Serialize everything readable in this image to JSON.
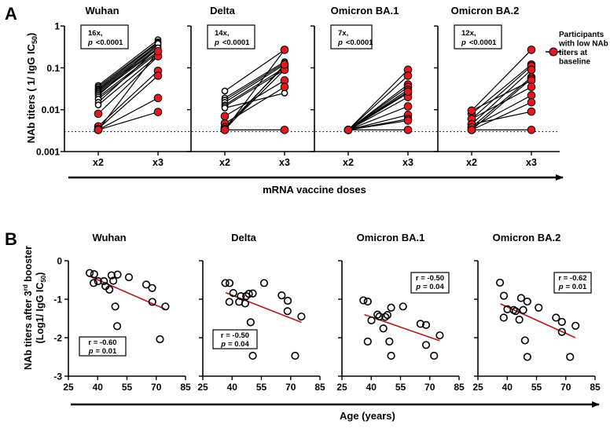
{
  "panel_labels": [
    "A",
    "B"
  ],
  "colors": {
    "low": "#e3191f",
    "open": "#ffffff",
    "trend": "#b3191c",
    "ink": "#000000"
  },
  "legend": {
    "lines": [
      "Participants",
      "with low NAb",
      "titers at",
      "baseline"
    ]
  },
  "chart_data": [
    {
      "type": "line",
      "panel": "A",
      "ylabel": {
        "main": "NAb titers ( 1/ IgG  IC",
        "sub": "50",
        "end": ")"
      },
      "xlabel": "mRNA vaccine doses",
      "yscale": "log",
      "ylim": [
        0.001,
        1
      ],
      "yticks": [
        {
          "v": 1,
          "label": "1"
        },
        {
          "v": 0.1,
          "label": "0.1"
        },
        {
          "v": 0.01,
          "label": "0.01"
        },
        {
          "v": 0.001,
          "label": "0.001"
        }
      ],
      "categories": [
        "x2",
        "x3"
      ],
      "detection_limit": 0.003,
      "subplots": [
        {
          "title": "Wuhan",
          "fold": "16x,",
          "p_label": "p",
          "p_value": "<0.0001",
          "pairs": [
            [
              0.038,
              0.47,
              false
            ],
            [
              0.035,
              0.42,
              false
            ],
            [
              0.032,
              0.4,
              false
            ],
            [
              0.03,
              0.36,
              false
            ],
            [
              0.028,
              0.33,
              false
            ],
            [
              0.026,
              0.3,
              false
            ],
            [
              0.024,
              0.28,
              false
            ],
            [
              0.022,
              0.38,
              false
            ],
            [
              0.02,
              0.25,
              false
            ],
            [
              0.018,
              0.23,
              false
            ],
            [
              0.015,
              0.3,
              false
            ],
            [
              0.013,
              0.2,
              false
            ],
            [
              0.008,
              0.19,
              true
            ],
            [
              0.004,
              0.085,
              true
            ],
            [
              0.0035,
              0.065,
              true
            ],
            [
              0.0033,
              0.019,
              true
            ],
            [
              0.0033,
              0.0088,
              true
            ],
            [
              0.0033,
              0.25,
              true
            ]
          ]
        },
        {
          "title": "Delta",
          "fold": "14x,",
          "p_label": "p",
          "p_value": "<0.0001",
          "pairs": [
            [
              0.028,
              0.27,
              false
            ],
            [
              0.019,
              0.14,
              false
            ],
            [
              0.017,
              0.13,
              false
            ],
            [
              0.015,
              0.12,
              false
            ],
            [
              0.013,
              0.1,
              false
            ],
            [
              0.012,
              0.09,
              false
            ],
            [
              0.011,
              0.025,
              false
            ],
            [
              0.007,
              0.05,
              true
            ],
            [
              0.0047,
              0.035,
              true
            ],
            [
              0.0038,
              0.11,
              true
            ],
            [
              0.0035,
              0.09,
              true
            ],
            [
              0.0033,
              0.0033,
              true
            ],
            [
              0.0033,
              0.27,
              true
            ],
            [
              0.0033,
              0.12,
              true
            ]
          ]
        },
        {
          "title": "Omicron BA.1",
          "fold": "7x,",
          "p_label": "p",
          "p_value": "<0.0001",
          "pairs": [
            [
              0.0033,
              0.09,
              true
            ],
            [
              0.0033,
              0.065,
              true
            ],
            [
              0.0033,
              0.04,
              true
            ],
            [
              0.0033,
              0.035,
              true
            ],
            [
              0.0033,
              0.03,
              true
            ],
            [
              0.0033,
              0.025,
              true
            ],
            [
              0.0033,
              0.02,
              true
            ],
            [
              0.0033,
              0.0075,
              true
            ],
            [
              0.0033,
              0.006,
              true
            ],
            [
              0.0033,
              0.027,
              true
            ],
            [
              0.0033,
              0.012,
              true
            ],
            [
              0.0033,
              0.0055,
              true
            ],
            [
              0.0033,
              0.0033,
              true
            ]
          ]
        },
        {
          "title": "Omicron BA.2",
          "fold": "12x,",
          "p_label": "p",
          "p_value": "<0.0001",
          "pairs": [
            [
              0.0095,
              0.27,
              true
            ],
            [
              0.008,
              0.12,
              true
            ],
            [
              0.006,
              0.11,
              true
            ],
            [
              0.0045,
              0.09,
              true
            ],
            [
              0.0038,
              0.06,
              true
            ],
            [
              0.0033,
              0.055,
              true
            ],
            [
              0.0095,
              0.05,
              true
            ],
            [
              0.006,
              0.035,
              true
            ],
            [
              0.0045,
              0.009,
              true
            ],
            [
              0.0038,
              0.022,
              true
            ],
            [
              0.0033,
              0.015,
              true
            ],
            [
              0.0033,
              0.0033,
              true
            ]
          ]
        }
      ]
    },
    {
      "type": "scatter",
      "panel": "B",
      "ylabel": {
        "line1_main": "NAb titers after 3",
        "line1_sup": "rd",
        "line1_end": " booster",
        "line2_main": "(Log1/ IgG IC",
        "line2_sub": "50",
        "line2_end": ")"
      },
      "xlabel": "Age (years)",
      "xlim": [
        25,
        85
      ],
      "ylim": [
        -3,
        0
      ],
      "xticks": [
        "25",
        "40",
        "55",
        "70",
        "85"
      ],
      "yticks": [
        "0",
        "-1",
        "-2",
        "-3"
      ],
      "subplots": [
        {
          "title": "Wuhan",
          "r": "r = -0.60",
          "p_label": "p",
          "p_value": "= 0.01",
          "trend": [
            [
              36.2,
              -0.41
            ],
            [
              74.6,
              -1.26
            ]
          ],
          "points": [
            [
              35.9,
              -0.32
            ],
            [
              38.2,
              -0.35
            ],
            [
              37.9,
              -0.58
            ],
            [
              40.2,
              -0.53
            ],
            [
              43.2,
              -0.53
            ],
            [
              44.0,
              -0.66
            ],
            [
              46.0,
              -0.75
            ],
            [
              47.1,
              -0.38
            ],
            [
              48.0,
              -0.52
            ],
            [
              50.2,
              -0.36
            ],
            [
              49.0,
              -1.19
            ],
            [
              50.0,
              -1.7
            ],
            [
              56.0,
              -0.43
            ],
            [
              64.9,
              -0.62
            ],
            [
              67.9,
              -0.71
            ],
            [
              68.0,
              -1.07
            ],
            [
              71.9,
              -2.04
            ],
            [
              74.7,
              -1.19
            ]
          ]
        },
        {
          "title": "Delta",
          "r": "r = -0.50",
          "p_label": "p",
          "p_value": "= 0.04",
          "trend": [
            [
              36.7,
              -0.83
            ],
            [
              75.5,
              -1.6
            ]
          ],
          "points": [
            [
              36.5,
              -0.58
            ],
            [
              38.7,
              -0.58
            ],
            [
              38.6,
              -1.07
            ],
            [
              40.6,
              -0.84
            ],
            [
              43.6,
              -1.07
            ],
            [
              44.5,
              -0.92
            ],
            [
              46.7,
              -1.11
            ],
            [
              47.2,
              -0.92
            ],
            [
              48.6,
              -0.86
            ],
            [
              50.6,
              -0.85
            ],
            [
              49.5,
              -1.6
            ],
            [
              50.6,
              -2.47
            ],
            [
              56.4,
              -0.58
            ],
            [
              65.4,
              -0.9
            ],
            [
              68.5,
              -1.04
            ],
            [
              68.4,
              -1.31
            ],
            [
              72.3,
              -2.47
            ],
            [
              75.5,
              -1.45
            ]
          ]
        },
        {
          "title": "Omicron BA.1",
          "r": "r = -0.50",
          "p_label": "p",
          "p_value": "= 0.04",
          "trend": [
            [
              36.5,
              -1.4
            ],
            [
              75.1,
              -2.08
            ]
          ],
          "points": [
            [
              36.0,
              -1.03
            ],
            [
              38.2,
              -1.06
            ],
            [
              40.1,
              -1.55
            ],
            [
              38.2,
              -2.1
            ],
            [
              43.2,
              -1.4
            ],
            [
              44.2,
              -1.45
            ],
            [
              47.2,
              -1.46
            ],
            [
              48.3,
              -1.41
            ],
            [
              46.2,
              -1.76
            ],
            [
              50.2,
              -1.22
            ],
            [
              49.3,
              -2.1
            ],
            [
              50.2,
              -2.47
            ],
            [
              56.3,
              -1.19
            ],
            [
              65.2,
              -1.64
            ],
            [
              68.1,
              -1.67
            ],
            [
              68.1,
              -2.19
            ],
            [
              72.2,
              -2.47
            ],
            [
              75.1,
              -1.94
            ]
          ]
        },
        {
          "title": "Omicron BA.2",
          "r": "r = -0.62",
          "p_label": "p",
          "p_value": "= 0.01",
          "trend": [
            [
              36.5,
              -1.12
            ],
            [
              74.9,
              -2.0
            ]
          ],
          "points": [
            [
              36.3,
              -0.57
            ],
            [
              38.3,
              -0.91
            ],
            [
              38.2,
              -1.48
            ],
            [
              40.1,
              -1.26
            ],
            [
              43.3,
              -1.28
            ],
            [
              44.3,
              -1.31
            ],
            [
              47.1,
              -0.97
            ],
            [
              50.3,
              -1.06
            ],
            [
              48.2,
              -1.28
            ],
            [
              46.2,
              -1.53
            ],
            [
              49.1,
              -2.07
            ],
            [
              50.3,
              -2.5
            ],
            [
              56.1,
              -1.22
            ],
            [
              65.0,
              -1.48
            ],
            [
              68.0,
              -1.59
            ],
            [
              68.0,
              -1.85
            ],
            [
              72.2,
              -2.5
            ],
            [
              75.0,
              -1.69
            ]
          ]
        }
      ]
    }
  ]
}
